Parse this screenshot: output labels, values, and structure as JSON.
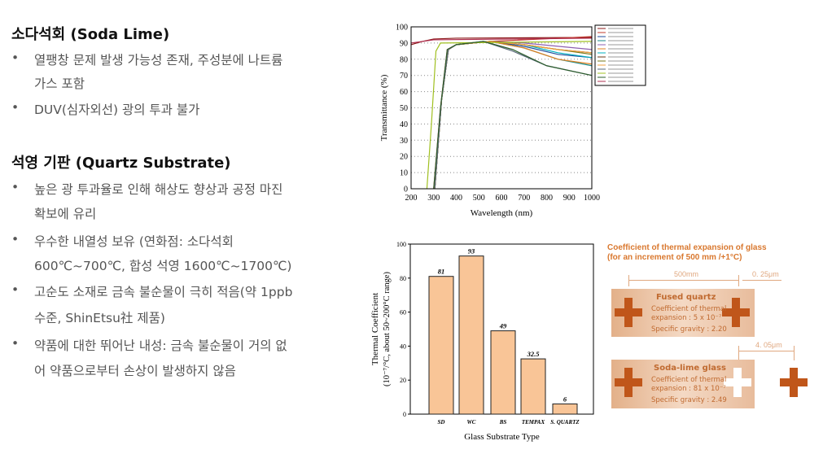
{
  "left": {
    "section1": {
      "title": "소다석회 (Soda Lime)",
      "bullets": [
        [
          "열팽창 문제 발생 가능성 존재, 주성분에 나트륨",
          "가스 포함"
        ],
        [
          "DUV(심자외선) 광의 투과 불가"
        ]
      ]
    },
    "section2": {
      "title": "석영 기판 (Quartz Substrate)",
      "bullets": [
        [
          "높은 광 투과율로 인해 해상도 향상과 공정 마진",
          "확보에 유리"
        ],
        [
          "우수한 내열성 보유 (연화점: 소다석회",
          "600℃~700℃, 합성 석영 1600℃~1700℃)"
        ],
        [
          "고순도 소재로 금속 불순물이 극히 적음(약 1ppb",
          "수준, ShinEtsu社 제품)"
        ],
        [
          "약품에 대한 뛰어난 내성: 금속 불순물이 거의 없",
          "어 약품으로부터 손상이 발생하지 않음"
        ]
      ],
      "bullet_symbol": "•"
    }
  },
  "chart_data": [
    {
      "type": "line",
      "xlabel": "Wavelength (nm)",
      "ylabel": "Transmittance (%)",
      "xlim": [
        200,
        1000
      ],
      "ylim": [
        0,
        100
      ],
      "xticks": [
        "200",
        "300",
        "400",
        "500",
        "600",
        "700",
        "800",
        "900",
        "1000"
      ],
      "yticks": [
        "0",
        "10",
        "20",
        "30",
        "40",
        "50",
        "60",
        "70",
        "80",
        "90",
        "100"
      ],
      "grid": "dotted horizontal",
      "legend": "right",
      "series": [
        {
          "color": "#8b1a1a",
          "points": [
            [
              200,
              89
            ],
            [
              250,
              91
            ],
            [
              300,
              92.5
            ],
            [
              400,
              93
            ],
            [
              1000,
              93.5
            ]
          ]
        },
        {
          "color": "#c0392b",
          "points": [
            [
              300,
              0
            ],
            [
              330,
              50
            ],
            [
              360,
              86
            ],
            [
              400,
              89
            ],
            [
              550,
              91
            ],
            [
              1000,
              94
            ]
          ]
        },
        {
          "color": "#1f4e9c",
          "points": [
            [
              305,
              0
            ],
            [
              335,
              55
            ],
            [
              365,
              86
            ],
            [
              400,
              89
            ],
            [
              550,
              91
            ],
            [
              700,
              88
            ],
            [
              850,
              83
            ],
            [
              1000,
              81
            ]
          ]
        },
        {
          "color": "#1a8a8a",
          "points": [
            [
              305,
              0
            ],
            [
              335,
              55
            ],
            [
              365,
              86
            ],
            [
              400,
              89
            ],
            [
              550,
              91
            ],
            [
              700,
              87
            ],
            [
              850,
              80
            ],
            [
              1000,
              76
            ]
          ]
        },
        {
          "color": "#8e5fb0",
          "points": [
            [
              305,
              0
            ],
            [
              335,
              55
            ],
            [
              365,
              86
            ],
            [
              400,
              89
            ],
            [
              550,
              91
            ],
            [
              700,
              90
            ],
            [
              850,
              88
            ],
            [
              1000,
              86
            ]
          ]
        },
        {
          "color": "#e08020",
          "points": [
            [
              305,
              0
            ],
            [
              335,
              55
            ],
            [
              365,
              86
            ],
            [
              400,
              89
            ],
            [
              550,
              91
            ],
            [
              700,
              87
            ],
            [
              850,
              80
            ],
            [
              1000,
              77
            ]
          ]
        },
        {
          "color": "#00b0c0",
          "points": [
            [
              305,
              0
            ],
            [
              335,
              55
            ],
            [
              365,
              86
            ],
            [
              400,
              89
            ],
            [
              550,
              91
            ],
            [
              700,
              89
            ],
            [
              850,
              84
            ],
            [
              1000,
              81
            ]
          ]
        },
        {
          "color": "#6b3a1a",
          "points": [
            [
              305,
              0
            ],
            [
              335,
              55
            ],
            [
              365,
              86
            ],
            [
              400,
              89
            ],
            [
              550,
              91
            ],
            [
              700,
              89
            ],
            [
              850,
              86
            ],
            [
              1000,
              84
            ]
          ]
        },
        {
          "color": "#7a7a1a",
          "points": [
            [
              305,
              0
            ],
            [
              335,
              55
            ],
            [
              365,
              86
            ],
            [
              400,
              89
            ],
            [
              550,
              91
            ],
            [
              700,
              89
            ],
            [
              850,
              86
            ],
            [
              1000,
              83
            ]
          ]
        },
        {
          "color": "#f0a040",
          "points": [
            [
              305,
              0
            ],
            [
              335,
              55
            ],
            [
              365,
              86
            ],
            [
              400,
              89
            ],
            [
              550,
              91
            ],
            [
              700,
              89
            ],
            [
              850,
              86
            ],
            [
              1000,
              84
            ]
          ]
        },
        {
          "color": "#5a6a7a",
          "points": [
            [
              305,
              0
            ],
            [
              335,
              55
            ],
            [
              365,
              86
            ],
            [
              400,
              89
            ],
            [
              520,
              91
            ],
            [
              650,
              85
            ],
            [
              800,
              76
            ],
            [
              1000,
              70
            ]
          ]
        },
        {
          "color": "#a0c020",
          "points": [
            [
              270,
              0
            ],
            [
              290,
              40
            ],
            [
              310,
              85
            ],
            [
              330,
              90
            ],
            [
              1000,
              91
            ]
          ]
        },
        {
          "color": "#2e5e2e",
          "points": [
            [
              300,
              0
            ],
            [
              330,
              50
            ],
            [
              360,
              86
            ],
            [
              400,
              89
            ],
            [
              520,
              91
            ],
            [
              650,
              86
            ],
            [
              800,
              76
            ],
            [
              1000,
              70
            ]
          ]
        },
        {
          "color": "#b03050",
          "points": [
            [
              200,
              90
            ],
            [
              300,
              92
            ],
            [
              1000,
              93
            ]
          ]
        }
      ]
    },
    {
      "type": "bar",
      "xlabel": "Glass Substrate Type",
      "ylabel": "Thermal Coefficient",
      "ylabel2": "(10⁻⁷/°C, about 50~200°C range)",
      "categories": [
        "SD",
        "WC",
        "BS",
        "TEMPAX",
        "S. QUARTZ"
      ],
      "values": [
        81,
        93,
        49,
        32.5,
        6
      ],
      "labels": [
        "81",
        "93",
        "49",
        "32.5",
        "6"
      ],
      "ylim": [
        0,
        100
      ],
      "yticks": [
        "0",
        "20",
        "40",
        "60",
        "80",
        "100"
      ],
      "bar_color": "#f9c597"
    }
  ],
  "diagram": {
    "title1": "Coefficient of thermal expansion of glass",
    "title2": "(for an increment of 500 mm /+1°C)",
    "dim_500": "500mm",
    "dim_quartz": "0. 25μm",
    "dim_soda": "4. 05μm",
    "quartz": {
      "name": "Fused quartz",
      "l1": "Coefficient of thermal",
      "l2": "expansion  :  5 x 10⁻⁷",
      "l3": "Specific gravity  :  2.20"
    },
    "soda": {
      "name": "Soda-lime glass",
      "l1": "Coefficient of thermal",
      "l2": "expansion  :  81 x 10⁻⁷",
      "l3": "Specific gravity  :  2.49"
    },
    "accent": "#d9782f",
    "cross_color": "#c0561a"
  }
}
